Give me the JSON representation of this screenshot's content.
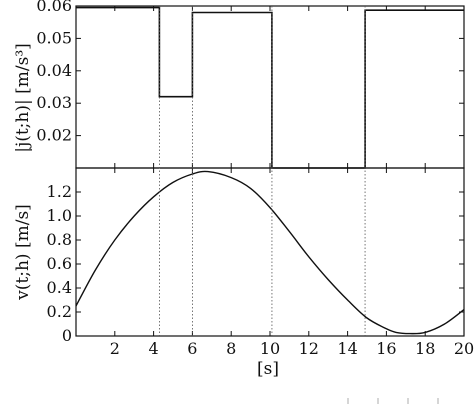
{
  "chart_data": [
    {
      "type": "line",
      "subtype": "step",
      "ylabel": "|j(t;h)|   [m/s³]",
      "xlim": [
        0,
        20
      ],
      "ylim": [
        0.01,
        0.06
      ],
      "yticks": [
        0.02,
        0.03,
        0.04,
        0.05,
        0.06
      ],
      "ytick_labels": [
        "0.02",
        "0.03",
        "0.04",
        "0.05",
        "0.06"
      ],
      "series": [
        {
          "x": [
            0,
            4.3,
            4.3,
            6.0,
            6.0,
            10.1,
            10.1,
            14.9,
            14.9,
            20
          ],
          "y": [
            0.0595,
            0.0595,
            0.032,
            0.032,
            0.058,
            0.058,
            0.01,
            0.01,
            0.0587,
            0.0587
          ]
        }
      ],
      "switch_times": [
        4.3,
        6.0,
        10.1,
        14.9
      ]
    },
    {
      "type": "line",
      "ylabel": "v(t;h)   [m/s]",
      "xlabel": "[s]",
      "xlim": [
        0,
        20
      ],
      "ylim": [
        0,
        1.4
      ],
      "xticks": [
        2,
        4,
        6,
        8,
        10,
        12,
        14,
        16,
        18,
        20
      ],
      "xtick_labels": [
        "2",
        "4",
        "6",
        "8",
        "10",
        "12",
        "14",
        "16",
        "18",
        "20"
      ],
      "yticks": [
        0,
        0.2,
        0.4,
        0.6,
        0.8,
        1.0,
        1.2
      ],
      "ytick_labels": [
        "0",
        "0.2",
        "0.4",
        "0.6",
        "0.8",
        "1.0",
        "1.2"
      ],
      "series": [
        {
          "x": [
            0,
            1,
            2,
            3,
            4,
            5,
            6,
            6.8,
            8,
            9,
            10,
            11,
            12,
            13,
            14,
            15,
            16,
            16.5,
            17.2,
            18,
            19,
            20
          ],
          "y": [
            0.25,
            0.55,
            0.8,
            1.0,
            1.16,
            1.28,
            1.35,
            1.37,
            1.32,
            1.23,
            1.07,
            0.87,
            0.66,
            0.47,
            0.3,
            0.15,
            0.06,
            0.03,
            0.02,
            0.03,
            0.1,
            0.22
          ]
        }
      ]
    }
  ]
}
